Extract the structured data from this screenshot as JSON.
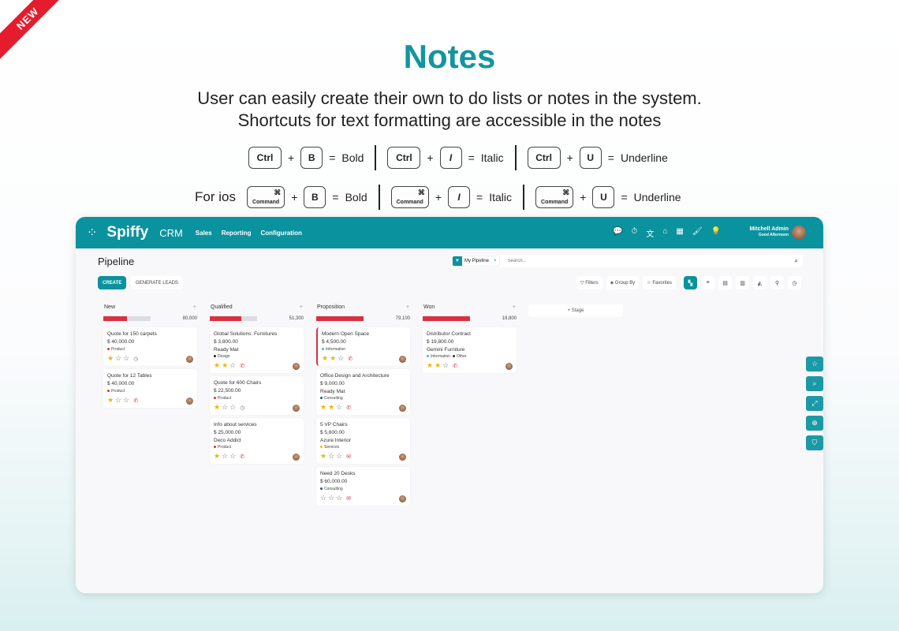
{
  "ribbon": "NEW",
  "hero": {
    "title": "Notes",
    "line1": "User can easily create their own to do lists or notes in the system.",
    "line2": "Shortcuts for text formatting are accessible in the notes"
  },
  "shortcuts": {
    "ctrl": "Ctrl",
    "command": "Command",
    "command_symbol": "⌘",
    "plus": "+",
    "equals": "=",
    "ios_label": "For ios",
    "items": [
      {
        "key": "B",
        "action": "Bold"
      },
      {
        "key": "I",
        "action": "Italic"
      },
      {
        "key": "U",
        "action": "Underline"
      }
    ]
  },
  "header": {
    "brand": "Spiffy",
    "app": "CRM",
    "menu": [
      "Sales",
      "Reporting",
      "Configuration"
    ],
    "user_name": "Mitchell Admin",
    "greeting": "Good Afternoon",
    "brand_color": "#0a929e"
  },
  "page": {
    "title": "Pipeline",
    "create": "CREATE",
    "generate": "GENERATE LEADS"
  },
  "search": {
    "facet": "My Pipeline",
    "facet_close": "×",
    "placeholder": "Search..."
  },
  "toolbar": {
    "filters": "Filters",
    "group_by": "Group By",
    "favorites": "Favorites",
    "views": [
      "kanban",
      "list",
      "calendar",
      "pivot",
      "graph",
      "map",
      "activity"
    ]
  },
  "add_stage": "+ Stage",
  "columns": [
    {
      "name": "New",
      "total": "80,000",
      "progress": 0.5,
      "cards": [
        {
          "name": "Quote for 150 carpets",
          "amount": "$ 40,000.00",
          "customer": "",
          "tags": [
            {
              "label": "Product",
              "color": "#d9303f"
            }
          ],
          "stars": 1,
          "activity": "clock"
        },
        {
          "name": "Quote for 12 Tables",
          "amount": "$ 40,000.00",
          "customer": "",
          "tags": [
            {
              "label": "Product",
              "color": "#d9303f"
            }
          ],
          "stars": 1,
          "activity": "phone"
        }
      ]
    },
    {
      "name": "Qualified",
      "total": "51,300",
      "progress": 0.67,
      "cards": [
        {
          "name": "Global Solutions: Furnitures",
          "amount": "$ 3,800.00",
          "customer": "Ready Mat",
          "tags": [
            {
              "label": "Design",
              "color": "#3a1a1a"
            }
          ],
          "stars": 2,
          "activity": "phone"
        },
        {
          "name": "Quote for 600 Chairs",
          "amount": "$ 22,500.00",
          "customer": "",
          "tags": [
            {
              "label": "Product",
              "color": "#d9303f"
            }
          ],
          "stars": 1,
          "activity": "clock"
        },
        {
          "name": "Info about services",
          "amount": "$ 25,000.00",
          "customer": "Deco Addict",
          "tags": [
            {
              "label": "Product",
              "color": "#d9303f"
            }
          ],
          "stars": 1,
          "activity": "phone"
        }
      ]
    },
    {
      "name": "Proposition",
      "total": "79,100",
      "progress": 1,
      "cards": [
        {
          "name": "Modern Open Space",
          "amount": "$ 4,500.00",
          "customer": "",
          "tags": [
            {
              "label": "Information",
              "color": "#4ab8c8"
            }
          ],
          "stars": 2,
          "activity": "phone",
          "highlight": true
        },
        {
          "name": "Office Design and Architecture",
          "amount": "$ 9,000.00",
          "customer": "Ready Mat",
          "tags": [
            {
              "label": "Consulting",
              "color": "#1a5d6a"
            }
          ],
          "stars": 2,
          "activity": "phone"
        },
        {
          "name": "5 VP Chairs",
          "amount": "$ 5,600.00",
          "customer": "Azure Interior",
          "tags": [
            {
              "label": "Services",
              "color": "#f0c000"
            }
          ],
          "stars": 1,
          "activity": "email"
        },
        {
          "name": "Need 20 Desks",
          "amount": "$ 60,000.00",
          "customer": "",
          "tags": [
            {
              "label": "Consulting",
              "color": "#1a5d6a"
            }
          ],
          "stars": 0,
          "activity": "email"
        }
      ]
    },
    {
      "name": "Won",
      "total": "19,800",
      "progress": 1,
      "cards": [
        {
          "name": "Distributor Contract",
          "amount": "$ 19,800.00",
          "customer": "Gemini Furniture",
          "tags": [
            {
              "label": "Information",
              "color": "#4ab8c8"
            },
            {
              "label": "Other",
              "color": "#333"
            }
          ],
          "stars": 2,
          "activity": "phone"
        }
      ]
    }
  ],
  "side_buttons": [
    "star",
    "search",
    "expand",
    "zoom",
    "bookmark"
  ]
}
